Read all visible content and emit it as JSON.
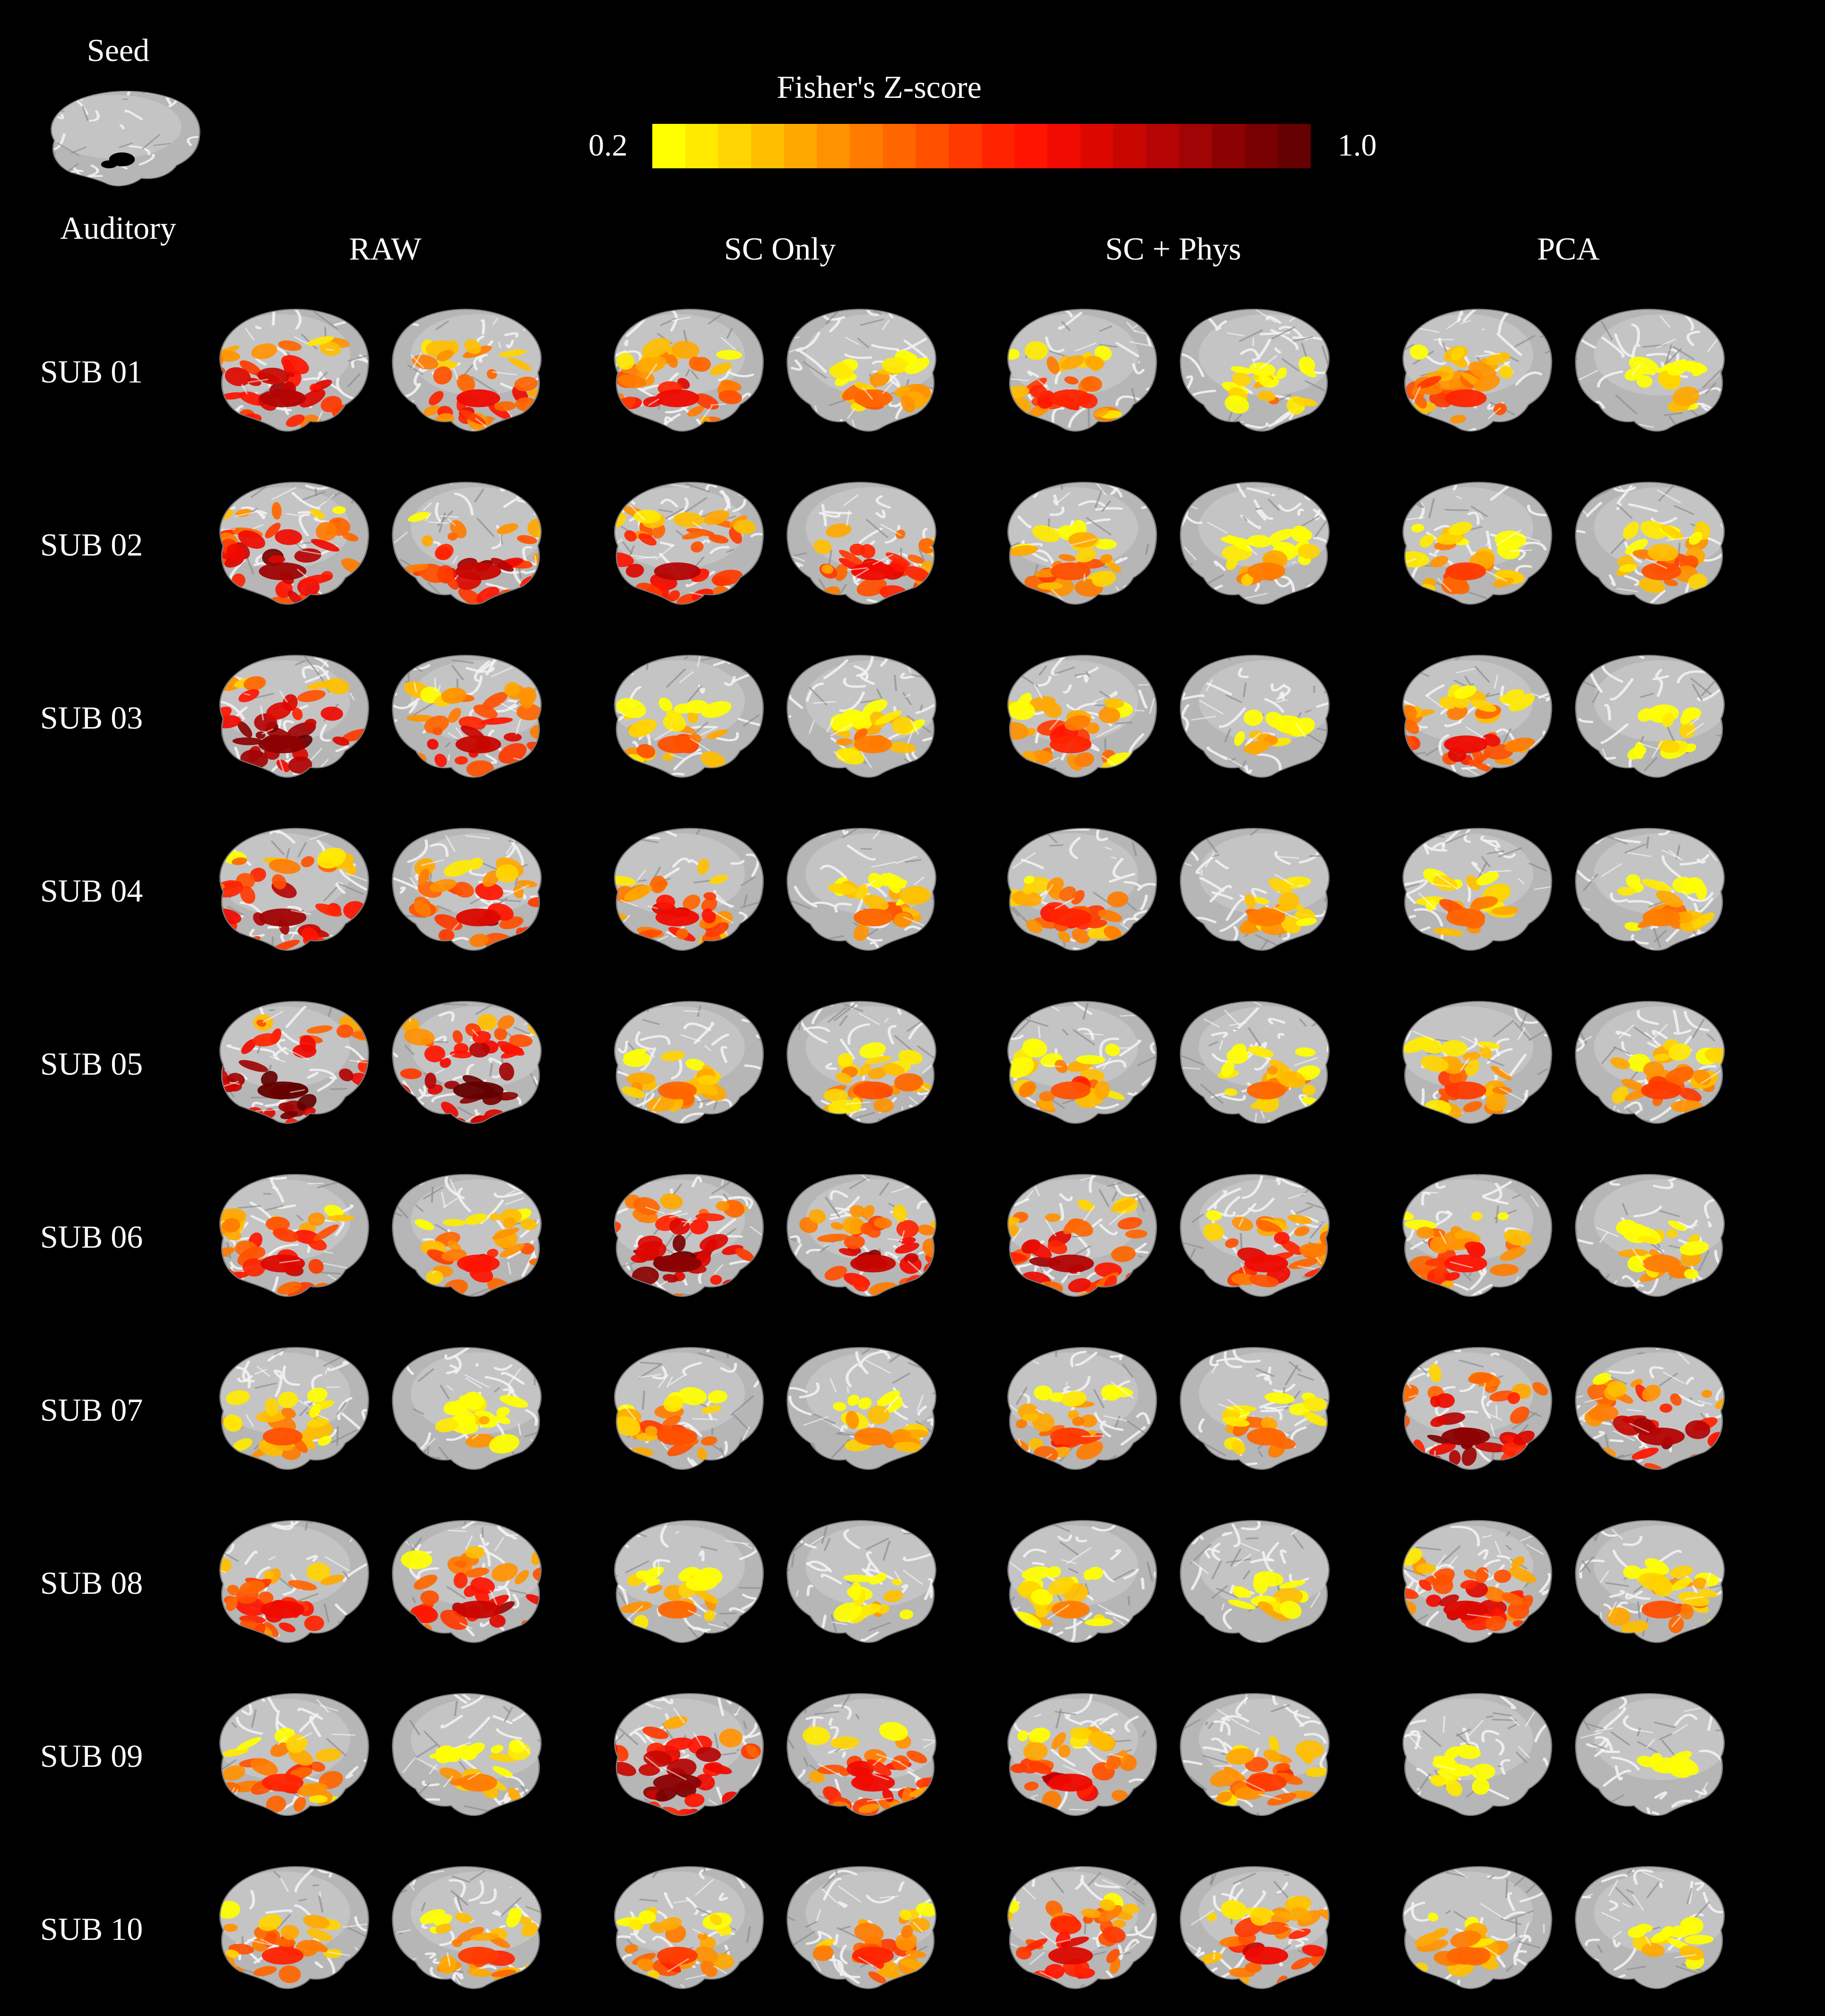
{
  "seed": {
    "top_label": "Seed",
    "bottom_label": "Auditory"
  },
  "colorbar": {
    "title": "Fisher's Z-score",
    "min_label": "0.2",
    "max_label": "1.0",
    "colors": [
      "#ffff00",
      "#ffea00",
      "#ffd400",
      "#ffbe00",
      "#ffa800",
      "#ff9200",
      "#ff7c00",
      "#ff6600",
      "#ff5000",
      "#ff3a00",
      "#ff2400",
      "#ff1400",
      "#f00a00",
      "#dc0800",
      "#c80600",
      "#b40404",
      "#a00404",
      "#8c0202",
      "#780000",
      "#640000"
    ]
  },
  "columns": [
    "RAW",
    "SC Only",
    "SC + Phys",
    "PCA"
  ],
  "rows": [
    "SUB 01",
    "SUB 02",
    "SUB 03",
    "SUB 04",
    "SUB 05",
    "SUB 06",
    "SUB 07",
    "SUB 08",
    "SUB 09",
    "SUB 10"
  ],
  "views": [
    "left",
    "right"
  ],
  "intensity_grid": [
    [
      [
        0.75,
        0.6
      ],
      [
        0.6,
        0.35
      ],
      [
        0.5,
        0.25
      ],
      [
        0.5,
        0.2
      ]
    ],
    [
      [
        0.8,
        0.7
      ],
      [
        0.75,
        0.6
      ],
      [
        0.4,
        0.3
      ],
      [
        0.45,
        0.4
      ]
    ],
    [
      [
        0.85,
        0.7
      ],
      [
        0.4,
        0.3
      ],
      [
        0.5,
        0.2
      ],
      [
        0.6,
        0.2
      ]
    ],
    [
      [
        0.8,
        0.65
      ],
      [
        0.6,
        0.35
      ],
      [
        0.5,
        0.3
      ],
      [
        0.35,
        0.3
      ]
    ],
    [
      [
        0.95,
        0.95
      ],
      [
        0.35,
        0.4
      ],
      [
        0.4,
        0.35
      ],
      [
        0.45,
        0.45
      ]
    ],
    [
      [
        0.65,
        0.55
      ],
      [
        0.85,
        0.7
      ],
      [
        0.75,
        0.6
      ],
      [
        0.55,
        0.3
      ]
    ],
    [
      [
        0.4,
        0.25
      ],
      [
        0.4,
        0.3
      ],
      [
        0.45,
        0.35
      ],
      [
        0.85,
        0.75
      ]
    ],
    [
      [
        0.6,
        0.7
      ],
      [
        0.35,
        0.2
      ],
      [
        0.3,
        0.2
      ],
      [
        0.65,
        0.4
      ]
    ],
    [
      [
        0.5,
        0.3
      ],
      [
        0.85,
        0.6
      ],
      [
        0.6,
        0.45
      ],
      [
        0.15,
        0.05
      ]
    ],
    [
      [
        0.5,
        0.45
      ],
      [
        0.45,
        0.5
      ],
      [
        0.65,
        0.6
      ],
      [
        0.35,
        0.2
      ]
    ]
  ]
}
